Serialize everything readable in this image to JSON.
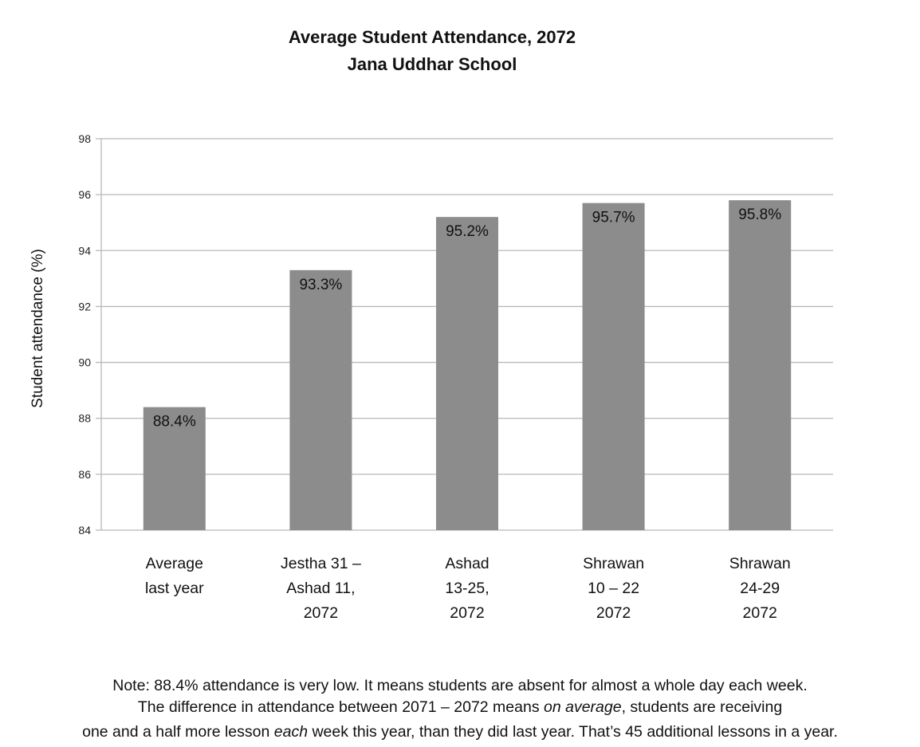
{
  "chart_data": {
    "type": "bar",
    "title": "Average Student Attendance, 2072",
    "subtitle": "Jana Uddhar School",
    "xlabel": "",
    "ylabel": "Student attendance (%)",
    "ylim": [
      84,
      98
    ],
    "yticks": [
      84,
      86,
      88,
      90,
      92,
      94,
      96,
      98
    ],
    "grid": true,
    "categories": [
      [
        "Average",
        "last year"
      ],
      [
        "Jestha 31 –",
        "Ashad 11,",
        "2072"
      ],
      [
        "Ashad",
        "13-25,",
        "2072"
      ],
      [
        "Shrawan",
        "10 – 22",
        "2072"
      ],
      [
        "Shrawan",
        "24-29",
        "2072"
      ]
    ],
    "values": [
      88.4,
      93.3,
      95.2,
      95.7,
      95.8
    ],
    "data_labels": [
      "88.4%",
      "93.3%",
      "95.2%",
      "95.7%",
      "95.8%"
    ],
    "bar_color": "#8c8c8c",
    "grid_color": "#b8b8b8"
  },
  "notes": {
    "line1": "Note: 88.4% attendance is very low. It means students are absent for almost a whole day each week.",
    "line2_pre": "The difference in attendance between 2071 – 2072 means ",
    "line2_em": "on average",
    "line2_post": ", students are receiving",
    "line3_pre": "one and a half more lesson ",
    "line3_em": "each",
    "line3_post": " week this year, than they did last year. That’s 45 additional lessons in a year."
  }
}
